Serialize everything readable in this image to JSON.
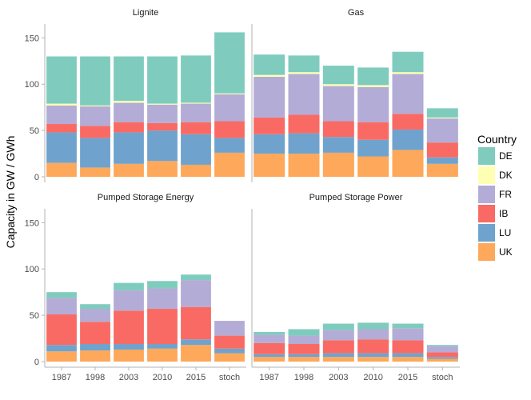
{
  "chart_data": {
    "type": "bar",
    "stacked": true,
    "ylabel": "Capacity in GW / GWh",
    "ylim": [
      0,
      165
    ],
    "yticks": [
      0,
      50,
      100,
      150
    ],
    "categories": [
      "1987",
      "1998",
      "2003",
      "2010",
      "2015",
      "stoch"
    ],
    "legend": {
      "title": "Country",
      "position": "right",
      "entries": [
        {
          "name": "DE",
          "color": "#7fccbe"
        },
        {
          "name": "DK",
          "color": "#ffffb3"
        },
        {
          "name": "FR",
          "color": "#b3acd6"
        },
        {
          "name": "IB",
          "color": "#f96a64"
        },
        {
          "name": "LU",
          "color": "#6fa3ce"
        },
        {
          "name": "UK",
          "color": "#fda85a"
        }
      ]
    },
    "stack_order_bottom_to_top": [
      "UK",
      "LU",
      "IB",
      "FR",
      "DK",
      "DE"
    ],
    "facets": [
      {
        "title": "Lignite",
        "series": [
          {
            "name": "UK",
            "values": [
              15,
              10,
              14,
              17,
              13,
              26
            ]
          },
          {
            "name": "LU",
            "values": [
              33,
              32,
              34,
              33,
              33,
              16
            ]
          },
          {
            "name": "IB",
            "values": [
              9,
              13,
              11,
              8,
              13,
              18
            ]
          },
          {
            "name": "FR",
            "values": [
              20,
              21,
              21,
              20,
              20,
              29
            ]
          },
          {
            "name": "DK",
            "values": [
              2,
              1,
              2,
              1,
              1,
              1
            ]
          },
          {
            "name": "DE",
            "values": [
              51,
              53,
              48,
              51,
              51,
              66
            ]
          }
        ]
      },
      {
        "title": "Gas",
        "series": [
          {
            "name": "UK",
            "values": [
              25,
              25,
              26,
              22,
              29,
              14
            ]
          },
          {
            "name": "LU",
            "values": [
              21,
              22,
              17,
              18,
              22,
              7
            ]
          },
          {
            "name": "IB",
            "values": [
              18,
              20,
              17,
              19,
              17,
              16
            ]
          },
          {
            "name": "FR",
            "values": [
              44,
              44,
              38,
              38,
              43,
              26
            ]
          },
          {
            "name": "DK",
            "values": [
              2,
              2,
              2,
              2,
              2,
              1
            ]
          },
          {
            "name": "DE",
            "values": [
              22,
              18,
              20,
              19,
              22,
              10
            ]
          }
        ]
      },
      {
        "title": "Pumped Storage Energy",
        "series": [
          {
            "name": "UK",
            "values": [
              11,
              12,
              13,
              14,
              18,
              9
            ]
          },
          {
            "name": "LU",
            "values": [
              7,
              7,
              6,
              5,
              6,
              5
            ]
          },
          {
            "name": "IB",
            "values": [
              33,
              24,
              36,
              38,
              35,
              14
            ]
          },
          {
            "name": "FR",
            "values": [
              18,
              14,
              22,
              22,
              29,
              16
            ]
          },
          {
            "name": "DK",
            "values": [
              0,
              0,
              0,
              0,
              0,
              0
            ]
          },
          {
            "name": "DE",
            "values": [
              6,
              5,
              8,
              8,
              6,
              0
            ]
          }
        ]
      },
      {
        "title": "Pumped Storage Power",
        "series": [
          {
            "name": "UK",
            "values": [
              5,
              5,
              5,
              5,
              5,
              3
            ]
          },
          {
            "name": "LU",
            "values": [
              3,
              3,
              4,
              4,
              4,
              2
            ]
          },
          {
            "name": "IB",
            "values": [
              12,
              11,
              14,
              15,
              14,
              5
            ]
          },
          {
            "name": "FR",
            "values": [
              9,
              9,
              11,
              11,
              13,
              7
            ]
          },
          {
            "name": "DK",
            "values": [
              0,
              0,
              0,
              0,
              0,
              0
            ]
          },
          {
            "name": "DE",
            "values": [
              3,
              7,
              7,
              7,
              5,
              1
            ]
          }
        ]
      }
    ]
  }
}
